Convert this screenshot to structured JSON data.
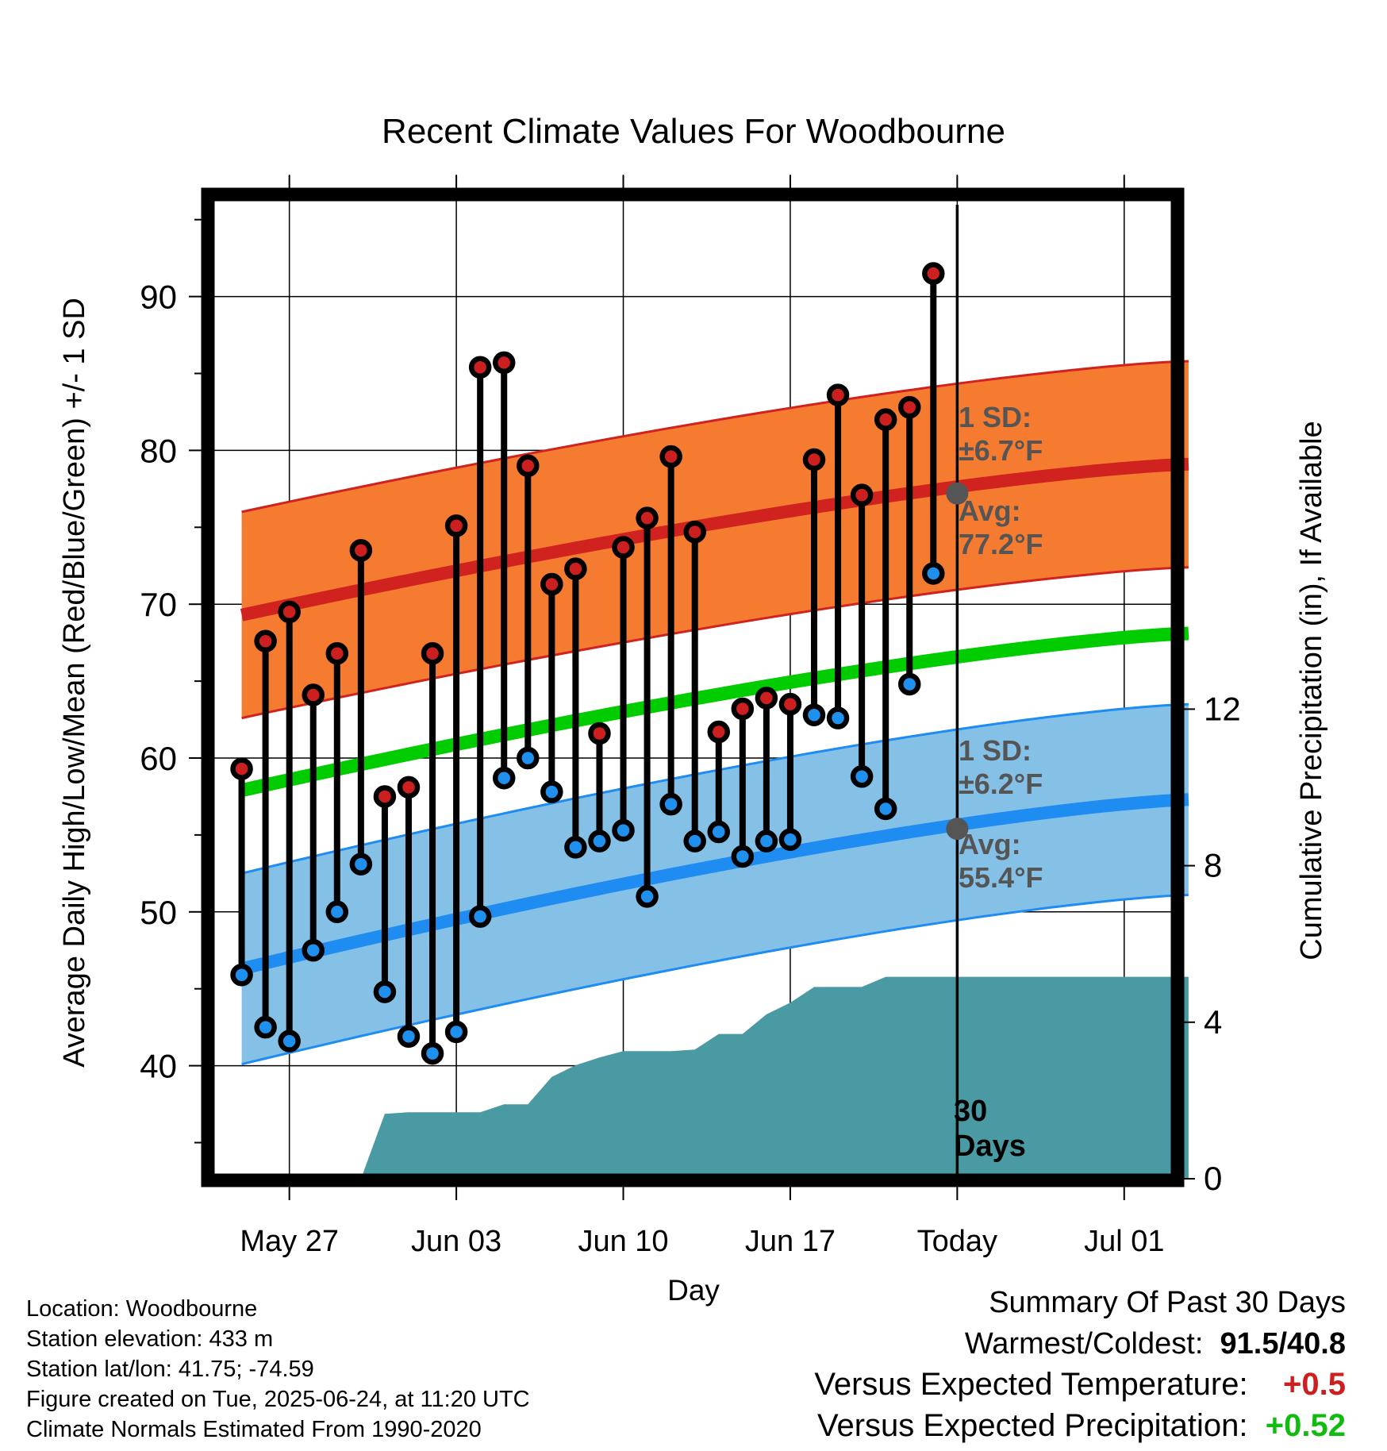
{
  "chart_data": {
    "type": "line",
    "title": "Recent Climate Values For Woodbourne",
    "xlabel": "Day",
    "ylabel": "Average Daily High/Low/Mean (Red/Blue/Green) +/- 1 SD",
    "ylabel_right": "Cumulative Precipitation (in), If Available",
    "x_ticks": [
      "May 27",
      "Jun 03",
      "Jun 10",
      "Jun 17",
      "Today",
      "Jul 01"
    ],
    "x_tick_day_index": [
      3,
      10,
      17,
      24,
      31,
      38
    ],
    "y_ticks": [
      40,
      50,
      60,
      70,
      80,
      90
    ],
    "y_ticks_right": [
      0,
      4,
      8,
      12
    ],
    "ylim": [
      33,
      97
    ],
    "ylim_right": [
      0,
      25
    ],
    "grid": true,
    "days": [
      "May 25",
      "May 26",
      "May 27",
      "May 28",
      "May 29",
      "May 30",
      "May 31",
      "Jun 01",
      "Jun 02",
      "Jun 03",
      "Jun 04",
      "Jun 05",
      "Jun 06",
      "Jun 07",
      "Jun 08",
      "Jun 09",
      "Jun 10",
      "Jun 11",
      "Jun 12",
      "Jun 13",
      "Jun 14",
      "Jun 15",
      "Jun 16",
      "Jun 17",
      "Jun 18",
      "Jun 19",
      "Jun 20",
      "Jun 21",
      "Jun 22",
      "Jun 23"
    ],
    "daily_high": [
      59.3,
      67.6,
      69.5,
      64.1,
      66.8,
      73.5,
      57.5,
      58.1,
      66.8,
      75.1,
      85.4,
      85.7,
      79.0,
      71.3,
      72.3,
      61.6,
      73.7,
      75.6,
      79.6,
      74.7,
      61.7,
      63.2,
      63.9,
      63.5,
      79.4,
      83.6,
      77.1,
      82.0,
      82.8,
      91.5
    ],
    "daily_low": [
      45.9,
      42.5,
      41.6,
      47.5,
      50.0,
      53.1,
      44.8,
      41.9,
      40.8,
      42.2,
      49.7,
      58.7,
      60.0,
      57.8,
      54.2,
      54.6,
      55.3,
      51.0,
      57.0,
      54.6,
      55.2,
      53.6,
      54.6,
      54.7,
      62.8,
      62.6,
      58.8,
      56.7,
      64.8,
      72.0
    ],
    "normal_high_range": [
      69.3,
      79.1
    ],
    "normal_high_sd": 6.7,
    "normal_low_range": [
      46.3,
      57.3
    ],
    "normal_low_sd": 6.2,
    "normal_mean_range": [
      57.9,
      68.1
    ],
    "cumulative_precipitation": [
      0.0,
      0.0,
      0.0,
      0.0,
      0.0,
      0.0,
      1.66,
      1.7,
      1.7,
      1.7,
      1.7,
      1.9,
      1.9,
      2.6,
      2.9,
      3.1,
      3.26,
      3.26,
      3.26,
      3.3,
      3.7,
      3.7,
      4.2,
      4.5,
      4.9,
      4.9,
      4.9,
      5.16,
      5.16,
      5.16
    ],
    "today_marker": {
      "label_line1": "30",
      "label_line2": "Days",
      "high_sd_line1": "1 SD:",
      "high_sd_line2": "±6.7°F",
      "high_avg_line1": "Avg:",
      "high_avg_line2": "77.2°F",
      "high_avg_value": 77.2,
      "low_sd_line1": "1 SD:",
      "low_sd_line2": "±6.2°F",
      "low_avg_line1": "Avg:",
      "low_avg_line2": "55.4°F",
      "low_avg_value": 55.4
    },
    "colors": {
      "high_band": "#f47b30",
      "high_line": "#d0231f",
      "low_band": "#85c1e6",
      "low_line": "#1e8cf0",
      "mean_line": "#00cc00",
      "precip": "#4a9aa4",
      "high_dot": "#cc2020",
      "low_dot": "#2090ee",
      "annotation": "#555555"
    }
  },
  "info": {
    "location": "Location: Woodbourne",
    "elevation": "Station elevation: 433 m",
    "latlon": "Station lat/lon: 41.75; -74.59",
    "created": "Figure created on Tue, 2025-06-24, at 11:20 UTC",
    "normals": "Climate Normals Estimated From 1990-2020"
  },
  "summary": {
    "title": "Summary Of Past 30 Days",
    "warm_cold_label": "Warmest/Coldest:",
    "warm_cold_value": "91.5/40.8",
    "temp_label": "Versus Expected Temperature:",
    "temp_value": "+0.5",
    "temp_color": "#cc2020",
    "precip_label": "Versus Expected Precipitation:",
    "precip_value": "+0.52",
    "precip_color": "#11bb11"
  }
}
